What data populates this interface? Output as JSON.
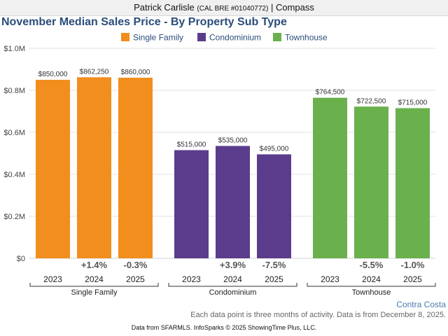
{
  "header": {
    "agent_name": "Patrick Carlisle",
    "license": "(CAL BRE #01040772)",
    "separator": "|",
    "brokerage": "Compass"
  },
  "chart_data": {
    "type": "bar",
    "title": "November Median Sales Price - By Property Sub Type",
    "ylim": [
      0,
      1000000
    ],
    "y_ticks": [
      {
        "value": 0,
        "label": "$0"
      },
      {
        "value": 200000,
        "label": "$0.2M"
      },
      {
        "value": 400000,
        "label": "$0.4M"
      },
      {
        "value": 600000,
        "label": "$0.6M"
      },
      {
        "value": 800000,
        "label": "$0.8M"
      },
      {
        "value": 1000000,
        "label": "$1.0M"
      }
    ],
    "grid": true,
    "legend_position": "top-center",
    "groups": [
      {
        "name": "Single Family",
        "color": "#f28e1e",
        "bars": [
          {
            "year": "2023",
            "value": 850000,
            "label": "$850,000",
            "change": ""
          },
          {
            "year": "2024",
            "value": 862250,
            "label": "$862,250",
            "change": "+1.4%"
          },
          {
            "year": "2025",
            "value": 860000,
            "label": "$860,000",
            "change": "-0.3%"
          }
        ]
      },
      {
        "name": "Condominium",
        "color": "#5b3c8c",
        "bars": [
          {
            "year": "2023",
            "value": 515000,
            "label": "$515,000",
            "change": ""
          },
          {
            "year": "2024",
            "value": 535000,
            "label": "$535,000",
            "change": "+3.9%"
          },
          {
            "year": "2025",
            "value": 495000,
            "label": "$495,000",
            "change": "-7.5%"
          }
        ]
      },
      {
        "name": "Townhouse",
        "color": "#6ab04c",
        "bars": [
          {
            "year": "2023",
            "value": 764500,
            "label": "$764,500",
            "change": ""
          },
          {
            "year": "2024",
            "value": 722500,
            "label": "$722,500",
            "change": "-5.5%"
          },
          {
            "year": "2025",
            "value": 715000,
            "label": "$715,000",
            "change": "-1.0%"
          }
        ]
      }
    ]
  },
  "footer": {
    "region": "Contra Costa",
    "note": "Each data point is three months of activity. Data is from December 8, 2025.",
    "credit": "Data from SFARMLS. InfoSparks © 2025 ShowingTime Plus, LLC."
  }
}
